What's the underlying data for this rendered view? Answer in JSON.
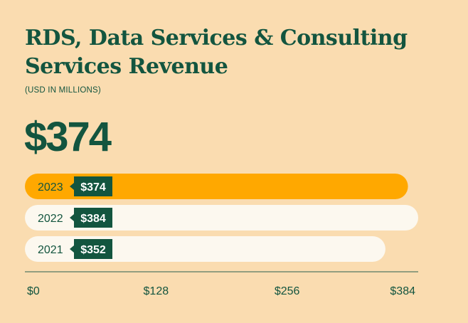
{
  "header": {
    "title": "RDS, Data Services & Consulting Services Revenue",
    "subtitle": "(USD IN MILLIONS)",
    "headline_value": "$374"
  },
  "colors": {
    "background": "#fadcb0",
    "highlight_bar": "#ffa800",
    "bar": "#fcf8ef",
    "label_bg": "#13553f",
    "text": "#13553f",
    "axis": "#6f8a70"
  },
  "chart_data": {
    "type": "bar",
    "orientation": "horizontal",
    "title": "RDS, Data Services & Consulting Services Revenue",
    "subtitle": "(USD IN MILLIONS)",
    "categories": [
      "2023",
      "2022",
      "2021"
    ],
    "values": [
      374,
      384,
      352
    ],
    "data_labels": [
      "$374",
      "$384",
      "$352"
    ],
    "highlight": "2023",
    "xlim": [
      0,
      384
    ],
    "xticks": [
      0,
      128,
      256,
      384
    ],
    "xtick_labels": [
      "$0",
      "$128",
      "$256",
      "$384"
    ],
    "grid": false,
    "legend": "none"
  }
}
